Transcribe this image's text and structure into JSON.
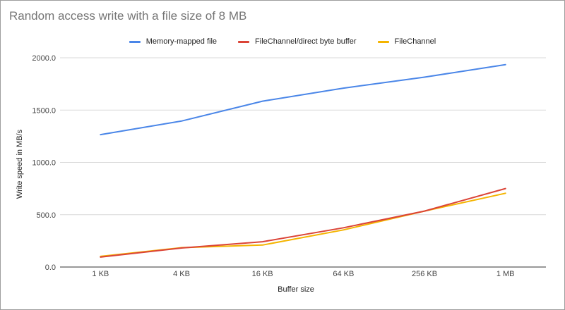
{
  "chart_data": {
    "type": "line",
    "title": "Random access write with a file size of 8 MB",
    "xlabel": "Buffer size",
    "ylabel": "Write speed in MB/s",
    "categories": [
      "1 KB",
      "4 KB",
      "16 KB",
      "64 KB",
      "256 KB",
      "1 MB"
    ],
    "ylim": [
      0,
      2000
    ],
    "yticks": [
      "0.0",
      "500.0",
      "1000.0",
      "1500.0",
      "2000.0"
    ],
    "grid": true,
    "legend_position": "top-center",
    "series": [
      {
        "name": "Memory-mapped file",
        "color": "#4a86e8",
        "values": [
          1265,
          1395,
          1585,
          1710,
          1815,
          1935
        ]
      },
      {
        "name": "FileChannel/direct byte buffer",
        "color": "#db4437",
        "values": [
          95,
          182,
          242,
          375,
          535,
          750
        ]
      },
      {
        "name": "FileChannel",
        "color": "#f4b400",
        "values": [
          102,
          185,
          210,
          355,
          535,
          705
        ]
      }
    ]
  }
}
